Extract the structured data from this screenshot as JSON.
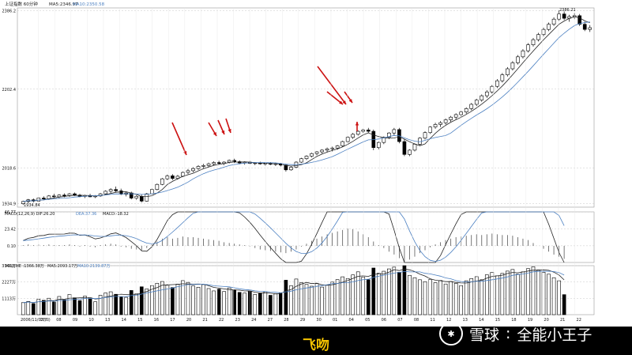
{
  "caption": "飞吻",
  "watermark": {
    "brand": "雪球",
    "separator": ":",
    "author": "全能小王子",
    "logo_icon": "snowball-logo-icon"
  },
  "colors": {
    "up": "#ffffff",
    "down": "#000000",
    "ma5": "#222222",
    "ma10": "#4a7fc1",
    "arrow": "#cc1111",
    "grid": "#c8c8c8",
    "macd_dif": "#222222",
    "macd_dea": "#4a7fc1"
  },
  "panels": {
    "price": {
      "header": "上证指数 60分钟",
      "ma5": "MA5:2346.97",
      "ma10": "MA10:2350.58",
      "y_ticks": [
        "2386.2",
        "2202.4",
        "2018.6",
        "1934.9"
      ],
      "high_label": "2386.21",
      "low_label": "1934.84"
    },
    "macd": {
      "header": "MACD(12,26,9) DIF:26.20",
      "dea": "DEA:37.36",
      "macd": "MACD:-18.32",
      "y_ticks": [
        "46.77",
        "23.42",
        "0.10"
      ]
    },
    "volume": {
      "header": "VOLUME :1366.38万",
      "ma5": "MA5:2093.17万",
      "ma10": "MA10:2139.87万",
      "y_ticks": [
        "3340万",
        "2227万",
        "1113万"
      ]
    }
  },
  "chart_data": {
    "type": "candlestick",
    "title": "上证指数 60分钟",
    "x_tick_labels": [
      "2006/11/02(四)",
      "07",
      "08",
      "09",
      "10",
      "13",
      "14",
      "15",
      "16",
      "17",
      "20",
      "21",
      "22",
      "23",
      "24",
      "27",
      "28",
      "29",
      "30",
      "01",
      "04",
      "05",
      "06",
      "07",
      "08",
      "11",
      "12",
      "13",
      "14",
      "15",
      "18",
      "19",
      "20",
      "21",
      "22"
    ],
    "price_range": [
      1934.84,
      2386.21
    ],
    "volume_ylim": [
      0,
      3340
    ],
    "macd_ylim": [
      -23,
      47
    ],
    "annotations": [
      {
        "type": "arrow",
        "label": "red-arrow"
      },
      {
        "type": "arrow",
        "label": "red-arrow"
      },
      {
        "type": "arrow",
        "label": "red-arrow"
      },
      {
        "type": "arrow",
        "label": "red-arrow"
      },
      {
        "type": "arrow",
        "label": "red-arrow"
      },
      {
        "type": "arrow",
        "label": "red-arrow"
      },
      {
        "type": "arrow",
        "label": "red-arrow"
      },
      {
        "type": "arrow",
        "label": "red-arrow"
      }
    ],
    "ohlc": [
      [
        1935,
        1942,
        1932,
        1940
      ],
      [
        1940,
        1946,
        1936,
        1944
      ],
      [
        1944,
        1947,
        1938,
        1941
      ],
      [
        1941,
        1950,
        1940,
        1948
      ],
      [
        1948,
        1952,
        1944,
        1946
      ],
      [
        1946,
        1955,
        1944,
        1953
      ],
      [
        1953,
        1958,
        1948,
        1951
      ],
      [
        1951,
        1957,
        1947,
        1955
      ],
      [
        1955,
        1959,
        1950,
        1953
      ],
      [
        1953,
        1960,
        1951,
        1958
      ],
      [
        1958,
        1961,
        1953,
        1955
      ],
      [
        1955,
        1958,
        1950,
        1952
      ],
      [
        1952,
        1956,
        1948,
        1954
      ],
      [
        1954,
        1958,
        1950,
        1951
      ],
      [
        1951,
        1955,
        1948,
        1953
      ],
      [
        1953,
        1960,
        1951,
        1958
      ],
      [
        1958,
        1966,
        1956,
        1964
      ],
      [
        1964,
        1971,
        1960,
        1968
      ],
      [
        1968,
        1975,
        1962,
        1965
      ],
      [
        1965,
        1970,
        1955,
        1957
      ],
      [
        1957,
        1962,
        1952,
        1960
      ],
      [
        1960,
        1963,
        1945,
        1948
      ],
      [
        1948,
        1955,
        1944,
        1952
      ],
      [
        1952,
        1956,
        1938,
        1941
      ],
      [
        1941,
        1960,
        1940,
        1958
      ],
      [
        1958,
        1970,
        1956,
        1968
      ],
      [
        1968,
        1982,
        1966,
        1980
      ],
      [
        1980,
        1995,
        1978,
        1993
      ],
      [
        1993,
        2003,
        1990,
        2000
      ],
      [
        2000,
        2004,
        1990,
        1994
      ],
      [
        1994,
        2002,
        1991,
        1999
      ],
      [
        1999,
        2010,
        1997,
        2008
      ],
      [
        2008,
        2016,
        2004,
        2012
      ],
      [
        2012,
        2020,
        2008,
        2017
      ],
      [
        2017,
        2025,
        2014,
        2022
      ],
      [
        2022,
        2028,
        2018,
        2024
      ],
      [
        2024,
        2031,
        2020,
        2028
      ],
      [
        2028,
        2034,
        2024,
        2031
      ],
      [
        2031,
        2035,
        2026,
        2029
      ],
      [
        2029,
        2034,
        2025,
        2032
      ],
      [
        2032,
        2038,
        2029,
        2036
      ],
      [
        2036,
        2040,
        2030,
        2033
      ],
      [
        2033,
        2036,
        2027,
        2030
      ],
      [
        2030,
        2034,
        2026,
        2032
      ],
      [
        2032,
        2035,
        2027,
        2029
      ],
      [
        2029,
        2032,
        2025,
        2030
      ],
      [
        2030,
        2033,
        2026,
        2028
      ],
      [
        2028,
        2031,
        2024,
        2029
      ],
      [
        2029,
        2032,
        2025,
        2027
      ],
      [
        2027,
        2031,
        2023,
        2028
      ],
      [
        2028,
        2030,
        2022,
        2025
      ],
      [
        2025,
        2028,
        2010,
        2014
      ],
      [
        2014,
        2022,
        2012,
        2020
      ],
      [
        2020,
        2034,
        2018,
        2032
      ],
      [
        2032,
        2042,
        2030,
        2040
      ],
      [
        2040,
        2048,
        2037,
        2046
      ],
      [
        2046,
        2054,
        2043,
        2052
      ],
      [
        2052,
        2058,
        2048,
        2056
      ],
      [
        2056,
        2062,
        2052,
        2060
      ],
      [
        2060,
        2066,
        2055,
        2063
      ],
      [
        2063,
        2068,
        2057,
        2065
      ],
      [
        2065,
        2072,
        2061,
        2070
      ],
      [
        2070,
        2082,
        2068,
        2080
      ],
      [
        2080,
        2092,
        2078,
        2090
      ],
      [
        2090,
        2100,
        2086,
        2097
      ],
      [
        2097,
        2106,
        2094,
        2104
      ],
      [
        2104,
        2110,
        2100,
        2107
      ],
      [
        2107,
        2112,
        2100,
        2104
      ],
      [
        2104,
        2108,
        2060,
        2066
      ],
      [
        2066,
        2080,
        2062,
        2078
      ],
      [
        2078,
        2092,
        2074,
        2090
      ],
      [
        2090,
        2102,
        2086,
        2100
      ],
      [
        2100,
        2112,
        2094,
        2108
      ],
      [
        2108,
        2112,
        2076,
        2080
      ],
      [
        2080,
        2086,
        2046,
        2050
      ],
      [
        2050,
        2062,
        2046,
        2060
      ],
      [
        2060,
        2076,
        2057,
        2074
      ],
      [
        2074,
        2090,
        2070,
        2088
      ],
      [
        2088,
        2104,
        2085,
        2101
      ],
      [
        2101,
        2116,
        2098,
        2114
      ],
      [
        2114,
        2124,
        2110,
        2120
      ],
      [
        2120,
        2128,
        2114,
        2124
      ],
      [
        2124,
        2134,
        2120,
        2131
      ],
      [
        2131,
        2140,
        2126,
        2137
      ],
      [
        2137,
        2146,
        2132,
        2143
      ],
      [
        2143,
        2152,
        2138,
        2149
      ],
      [
        2149,
        2160,
        2145,
        2157
      ],
      [
        2157,
        2170,
        2153,
        2167
      ],
      [
        2167,
        2180,
        2163,
        2177
      ],
      [
        2177,
        2190,
        2173,
        2187
      ],
      [
        2187,
        2200,
        2182,
        2196
      ],
      [
        2196,
        2212,
        2192,
        2209
      ],
      [
        2209,
        2226,
        2205,
        2222
      ],
      [
        2222,
        2240,
        2218,
        2236
      ],
      [
        2236,
        2254,
        2232,
        2250
      ],
      [
        2250,
        2268,
        2246,
        2264
      ],
      [
        2264,
        2282,
        2260,
        2278
      ],
      [
        2278,
        2296,
        2274,
        2292
      ],
      [
        2292,
        2310,
        2288,
        2306
      ],
      [
        2306,
        2322,
        2302,
        2318
      ],
      [
        2318,
        2334,
        2314,
        2330
      ],
      [
        2330,
        2346,
        2326,
        2342
      ],
      [
        2342,
        2358,
        2338,
        2354
      ],
      [
        2354,
        2370,
        2350,
        2366
      ],
      [
        2366,
        2386,
        2362,
        2378
      ],
      [
        2378,
        2384,
        2364,
        2368
      ],
      [
        2368,
        2376,
        2360,
        2372
      ],
      [
        2372,
        2380,
        2366,
        2374
      ],
      [
        2374,
        2378,
        2350,
        2354
      ],
      [
        2354,
        2360,
        2338,
        2342
      ],
      [
        2342,
        2352,
        2336,
        2346
      ]
    ],
    "volume": [
      820,
      900,
      760,
      1050,
      980,
      1120,
      870,
      1240,
      1010,
      1380,
      1150,
      960,
      1260,
      1090,
      880,
      1320,
      1480,
      1560,
      1390,
      1220,
      1180,
      1650,
      1420,
      1900,
      1760,
      1980,
      2140,
      2260,
      2010,
      1850,
      2080,
      2320,
      2200,
      1960,
      1870,
      2050,
      1780,
      1620,
      1740,
      1580,
      1820,
      1690,
      1520,
      1470,
      1600,
      1380,
      1450,
      1560,
      1320,
      1410,
      1490,
      2350,
      1980,
      2430,
      2180,
      2060,
      1940,
      2120,
      1880,
      2010,
      2220,
      2390,
      2580,
      2460,
      2710,
      2920,
      2560,
      2380,
      3180,
      2820,
      2960,
      3120,
      3240,
      2890,
      3340,
      2680,
      2520,
      2380,
      2250,
      2410,
      2180,
      2330,
      2090,
      2260,
      2140,
      1980,
      2310,
      2460,
      2590,
      2380,
      2720,
      2880,
      2650,
      2810,
      2970,
      3080,
      2760,
      2920,
      3140,
      3260,
      3050,
      2890,
      2760,
      2520,
      2310,
      1366
    ],
    "macd_hist": [
      1,
      2,
      1,
      2,
      1,
      2,
      1,
      1,
      1,
      2,
      1,
      -1,
      1,
      -1,
      -2,
      1,
      2,
      3,
      2,
      -1,
      -2,
      -4,
      -5,
      -7,
      -3,
      2,
      6,
      10,
      12,
      10,
      11,
      13,
      12,
      12,
      11,
      10,
      9,
      8,
      7,
      5,
      4,
      3,
      2,
      1,
      -1,
      -3,
      -5,
      -6,
      -7,
      -8,
      -9,
      -10,
      -8,
      -5,
      -1,
      3,
      7,
      10,
      13,
      16,
      18,
      20,
      22,
      24,
      23,
      20,
      16,
      12,
      6,
      1,
      -3,
      -8,
      -12,
      -17,
      -22,
      -19,
      -15,
      -10,
      -6,
      -2,
      2,
      5,
      8,
      10,
      12,
      13,
      14,
      15,
      16,
      15,
      16,
      17,
      16,
      15,
      15,
      14,
      12,
      10,
      8,
      4,
      0,
      -4,
      -8,
      -12,
      -15,
      -18
    ],
    "x_axis": "time (60-minute bars)",
    "y_axis": "price"
  }
}
